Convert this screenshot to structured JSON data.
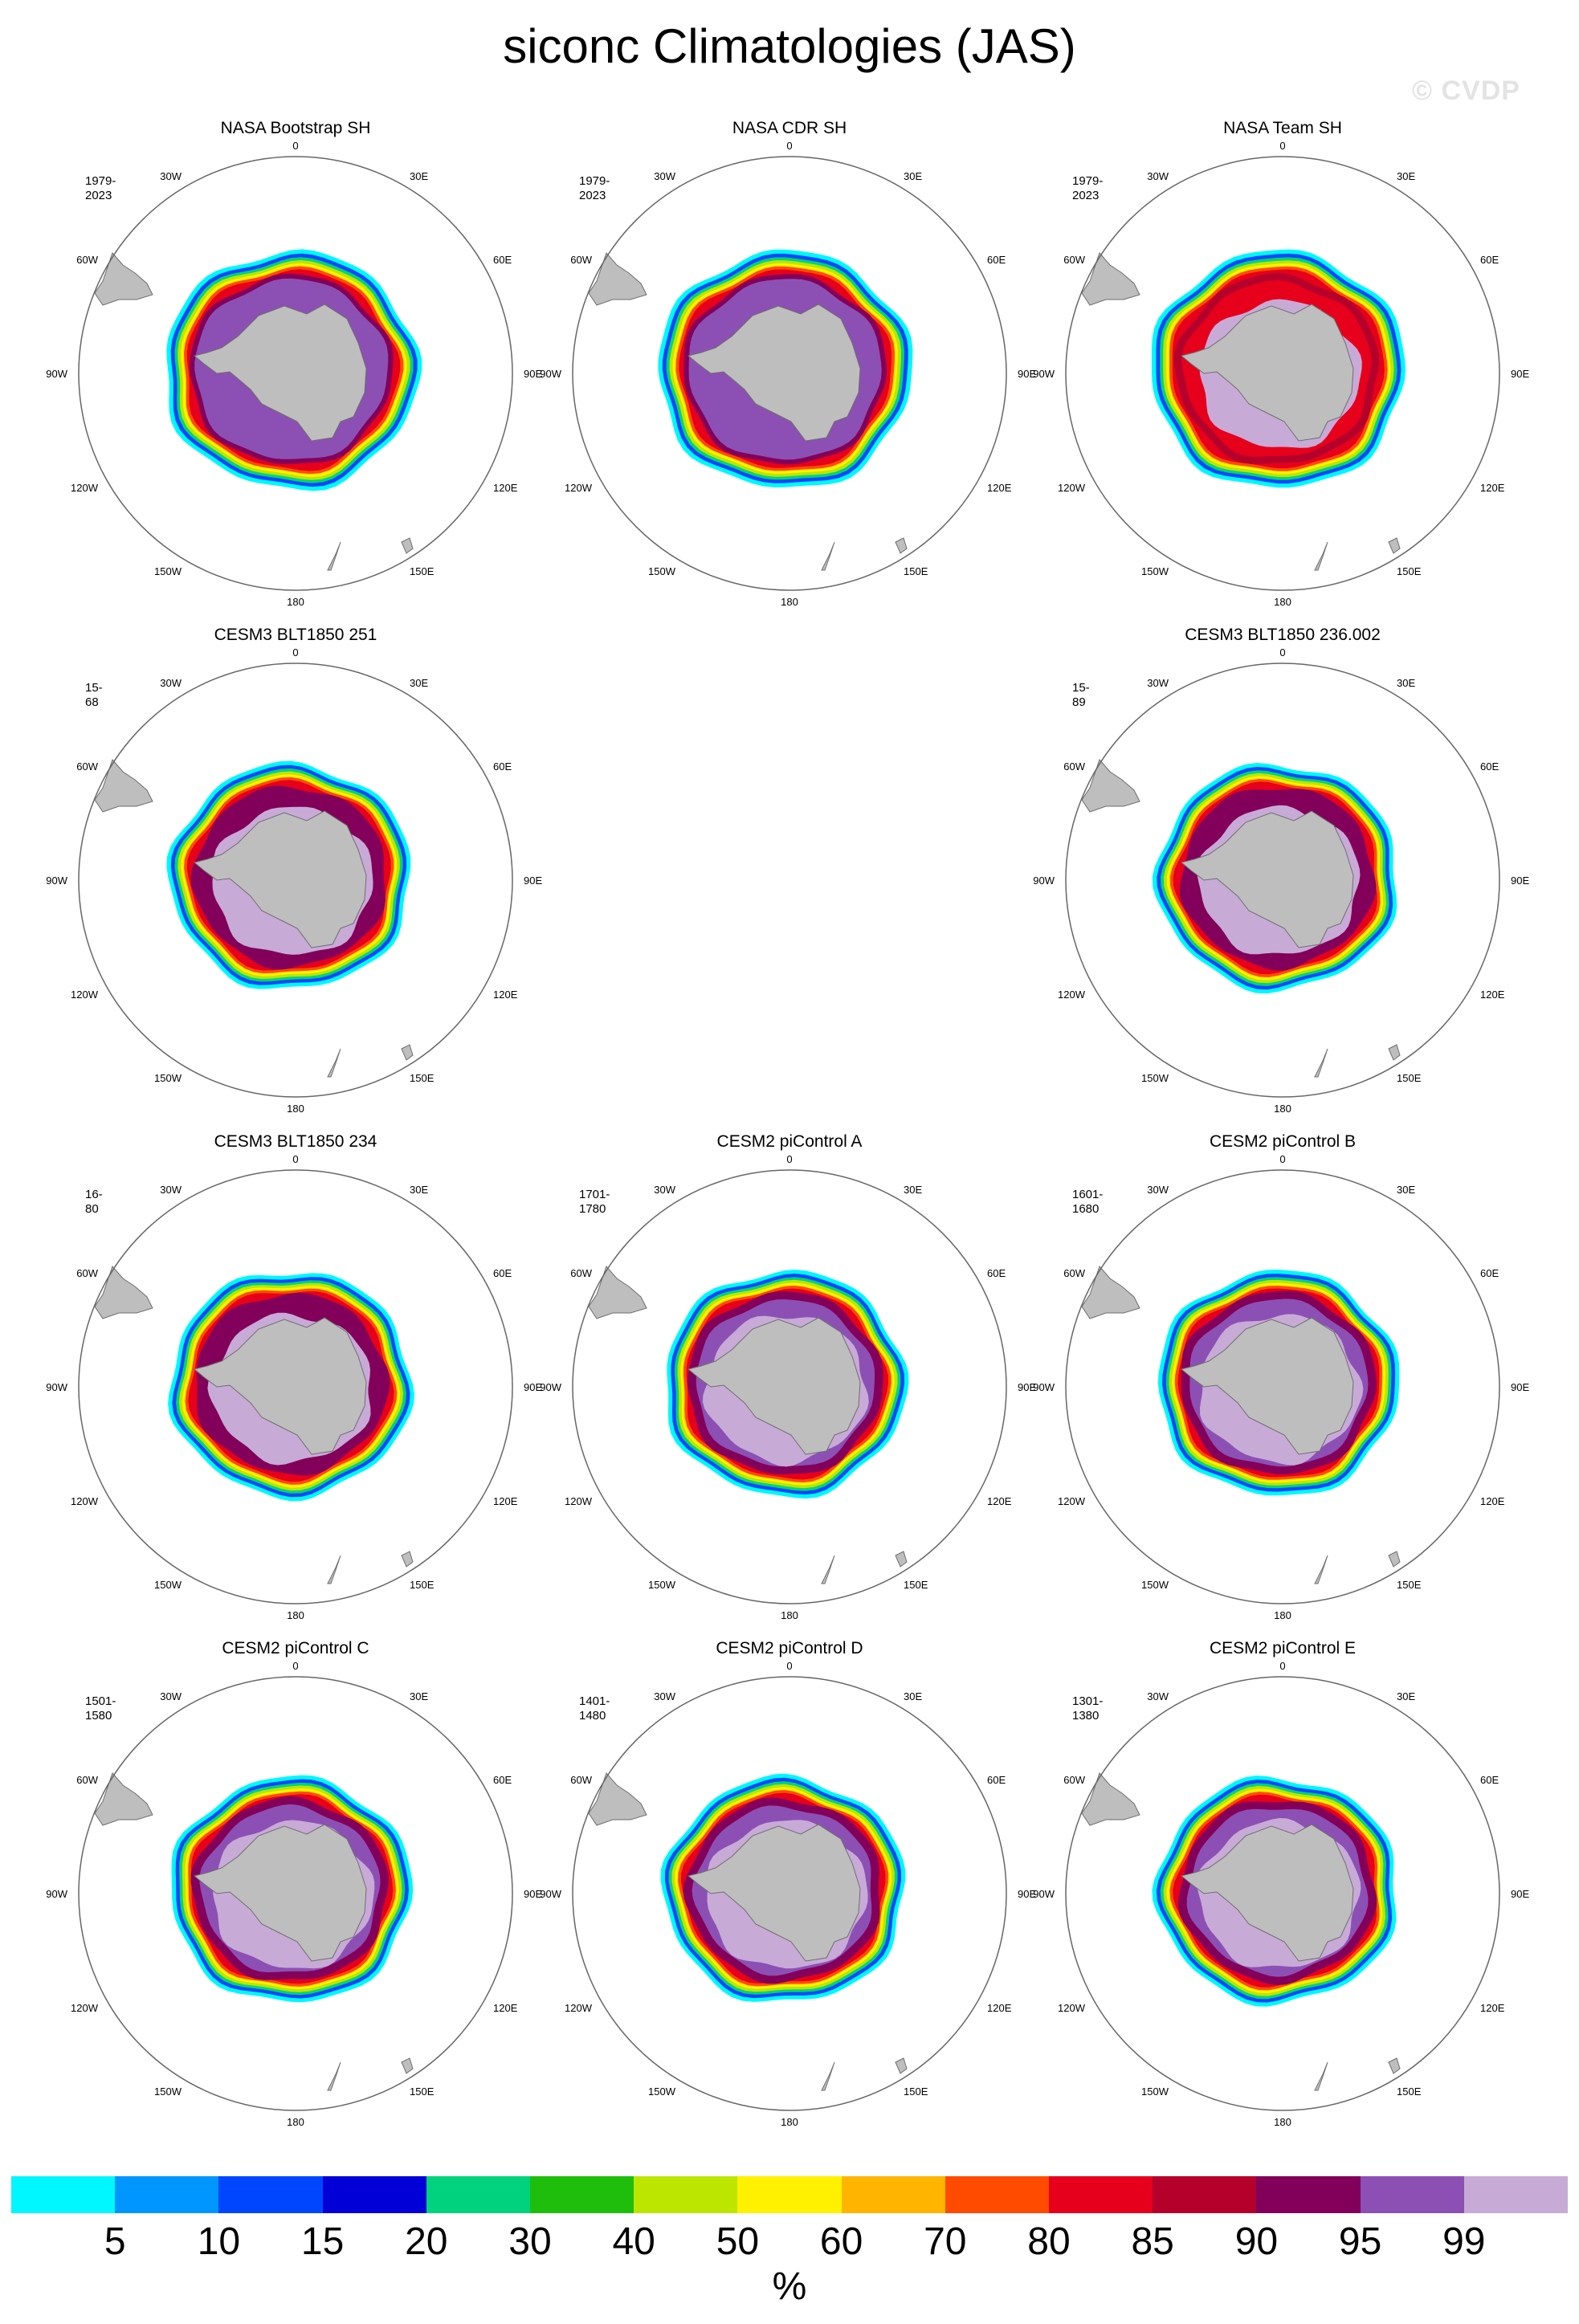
{
  "title": "siconc Climatologies (JAS)",
  "watermark": "© CVDP",
  "lon_labels": [
    "0",
    "30E",
    "60E",
    "90E",
    "120E",
    "150E",
    "180",
    "150W",
    "120W",
    "90W",
    "60W",
    "30W"
  ],
  "panels": [
    {
      "title": "NASA Bootstrap SH",
      "period": "1979-2023",
      "pattern": "obs",
      "row": 0,
      "col": 0
    },
    {
      "title": "NASA CDR SH",
      "period": "1979-2023",
      "pattern": "obs",
      "row": 0,
      "col": 1
    },
    {
      "title": "NASA Team SH",
      "period": "1979-2023",
      "pattern": "team",
      "row": 0,
      "col": 2
    },
    {
      "title": "CESM3 BLT1850 251",
      "period": "15-68",
      "pattern": "cesm3",
      "row": 1,
      "col": 0
    },
    {
      "title": "CESM3 BLT1850 236.002",
      "period": "15-89",
      "pattern": "cesm3",
      "row": 1,
      "col": 2
    },
    {
      "title": "CESM3 BLT1850 234",
      "period": "16-80",
      "pattern": "cesm3",
      "row": 2,
      "col": 0
    },
    {
      "title": "CESM2 piControl A",
      "period": "1701-1780",
      "pattern": "cesm2",
      "row": 2,
      "col": 1
    },
    {
      "title": "CESM2 piControl B",
      "period": "1601-1680",
      "pattern": "cesm2",
      "row": 2,
      "col": 2
    },
    {
      "title": "CESM2 piControl C",
      "period": "1501-1580",
      "pattern": "cesm2",
      "row": 3,
      "col": 0
    },
    {
      "title": "CESM2 piControl D",
      "period": "1401-1480",
      "pattern": "cesm2",
      "row": 3,
      "col": 1
    },
    {
      "title": "CESM2 piControl E",
      "period": "1301-1380",
      "pattern": "cesm2",
      "row": 3,
      "col": 2
    }
  ],
  "colorbar": {
    "unit": "%",
    "colors": [
      "#00f7ff",
      "#0096ff",
      "#0046ff",
      "#0000d7",
      "#00d27d",
      "#1fbe0c",
      "#bce600",
      "#fff100",
      "#ffb400",
      "#ff4b00",
      "#e6001c",
      "#b4002b",
      "#82005a",
      "#8c50b4",
      "#c8aad7"
    ],
    "labels": [
      "5",
      "10",
      "15",
      "20",
      "30",
      "40",
      "50",
      "60",
      "70",
      "80",
      "85",
      "90",
      "95",
      "99"
    ]
  },
  "chart_data": {
    "type": "heatmap",
    "title": "siconc Climatologies (JAS)",
    "variable": "siconc",
    "season": "JAS",
    "units": "%",
    "projection": "south polar stereographic",
    "contour_levels": [
      5,
      10,
      15,
      20,
      30,
      40,
      50,
      60,
      70,
      80,
      85,
      90,
      95,
      99
    ],
    "missing_panel": {
      "row": 1,
      "col": 1
    }
  }
}
